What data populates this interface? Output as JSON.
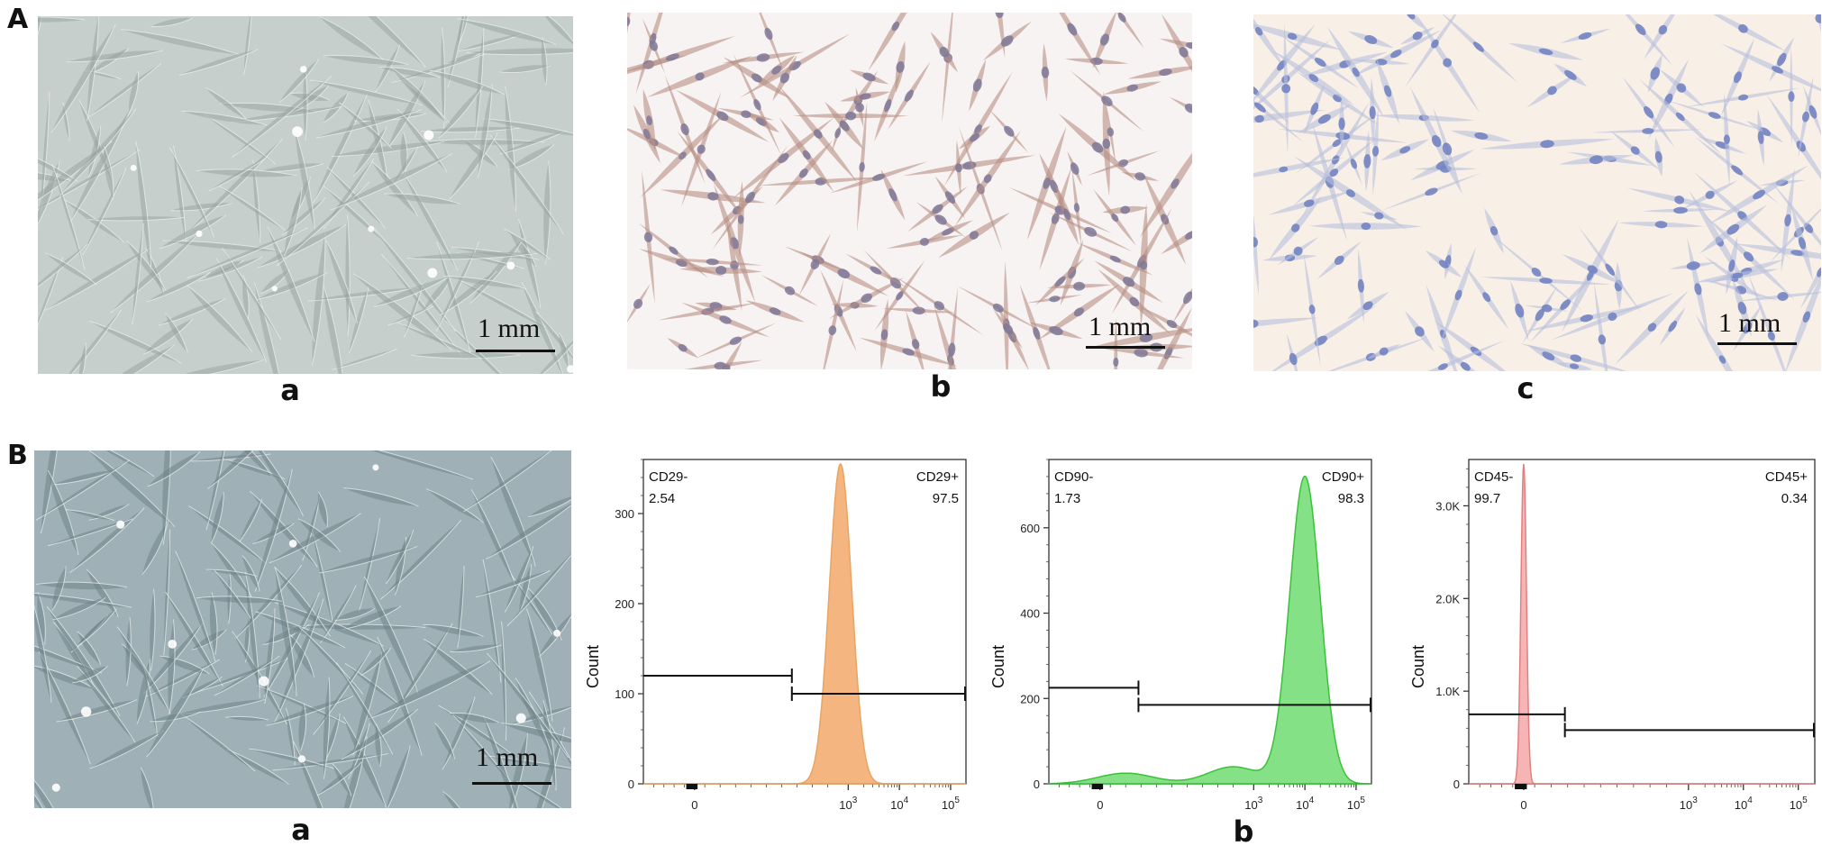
{
  "panels": {
    "A": {
      "letter": "A",
      "images": [
        {
          "sublabel": "a",
          "scale_label": "1 mm",
          "style": "phase-contrast",
          "bg": "#c6cfcb",
          "cell": "#9aa6a3"
        },
        {
          "sublabel": "b",
          "scale_label": "1 mm",
          "style": "ihc-positive",
          "bg": "#f7f3f2",
          "cell": "#b88f83"
        },
        {
          "sublabel": "c",
          "scale_label": "1 mm",
          "style": "ihc-negative",
          "bg": "#f8efe7",
          "cell": "#b7bfdc"
        }
      ]
    },
    "B": {
      "letter": "B",
      "image": {
        "sublabel": "a",
        "scale_label": "1 mm",
        "style": "phase-contrast",
        "bg": "#9fb1b6",
        "cell": "#6f8388"
      },
      "flow_sublabel": "b"
    }
  },
  "chart_data": [
    {
      "type": "area",
      "ylabel": "Count",
      "color": "#f4b27a",
      "stroke": "#e8a05a",
      "ylim": [
        0,
        360
      ],
      "yticks": [
        0,
        100,
        200,
        300
      ],
      "xticks": [
        "0",
        "10^3",
        "10^4",
        "10^5"
      ],
      "gate_neg": {
        "label": "CD29-",
        "value": "2.54"
      },
      "gate_pos": {
        "label": "CD29+",
        "value": "97.5"
      },
      "peak_at": 2.85,
      "peak_count": 355,
      "width": 0.22
    },
    {
      "type": "area",
      "ylabel": "Count",
      "color": "#7fe07f",
      "stroke": "#2fbf2f",
      "ylim": [
        0,
        760
      ],
      "yticks": [
        0,
        200,
        400,
        600
      ],
      "xticks": [
        "0",
        "10^3",
        "10^4",
        "10^5"
      ],
      "gate_neg": {
        "label": "CD90-",
        "value": "1.73"
      },
      "gate_pos": {
        "label": "CD90+",
        "value": "98.3"
      },
      "peak_at": 4.0,
      "peak_count": 720,
      "width": 0.3
    },
    {
      "type": "area",
      "ylabel": "Count",
      "color": "#f6b0b0",
      "stroke": "#e07a7a",
      "ylim": [
        0,
        3500
      ],
      "yticks": [
        "0",
        "1.0K",
        "2.0K",
        "3.0K"
      ],
      "ytick_values": [
        0,
        1000,
        2000,
        3000
      ],
      "xticks": [
        "0",
        "10^3",
        "10^4",
        "10^5"
      ],
      "gate_neg": {
        "label": "CD45-",
        "value": "99.7"
      },
      "gate_pos": {
        "label": "CD45+",
        "value": "0.34"
      },
      "peak_at": 0.0,
      "peak_count": 3450,
      "width": 0.05
    }
  ]
}
